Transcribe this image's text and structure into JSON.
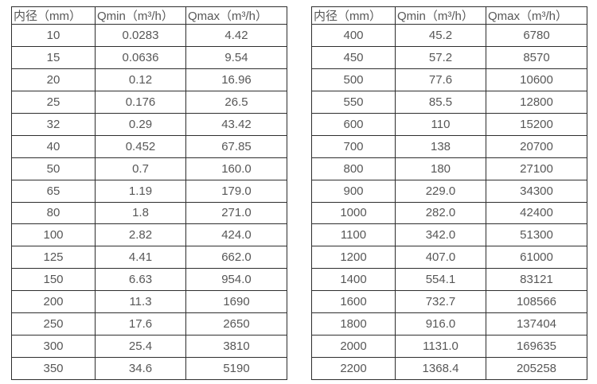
{
  "page": {
    "background_color": "#ffffff",
    "border_color": "#2e2e2e",
    "text_color": "#575757"
  },
  "tables": [
    {
      "name": "flow-table-small-diameters",
      "headers": [
        "内径（mm）",
        "Qmin（m³/h）",
        "Qmax（m³/h）"
      ],
      "rows": [
        [
          "10",
          "0.0283",
          "4.42"
        ],
        [
          "15",
          "0.0636",
          "9.54"
        ],
        [
          "20",
          "0.12",
          "16.96"
        ],
        [
          "25",
          "0.176",
          "26.5"
        ],
        [
          "32",
          "0.29",
          "43.42"
        ],
        [
          "40",
          "0.452",
          "67.85"
        ],
        [
          "50",
          "0.7",
          "160.0"
        ],
        [
          "65",
          "1.19",
          "179.0"
        ],
        [
          "80",
          "1.8",
          "271.0"
        ],
        [
          "100",
          "2.82",
          "424.0"
        ],
        [
          "125",
          "4.41",
          "662.0"
        ],
        [
          "150",
          "6.63",
          "954.0"
        ],
        [
          "200",
          "11.3",
          "1690"
        ],
        [
          "250",
          "17.6",
          "2650"
        ],
        [
          "300",
          "25.4",
          "3810"
        ],
        [
          "350",
          "34.6",
          "5190"
        ]
      ]
    },
    {
      "name": "flow-table-large-diameters",
      "headers": [
        "内径（mm）",
        "Qmin（m³/h）",
        "Qmax（m³/h）"
      ],
      "rows": [
        [
          "400",
          "45.2",
          "6780"
        ],
        [
          "450",
          "57.2",
          "8570"
        ],
        [
          "500",
          "77.6",
          "10600"
        ],
        [
          "550",
          "85.5",
          "12800"
        ],
        [
          "600",
          "110",
          "15200"
        ],
        [
          "700",
          "138",
          "20700"
        ],
        [
          "800",
          "180",
          "27100"
        ],
        [
          "900",
          "229.0",
          "34300"
        ],
        [
          "1000",
          "282.0",
          "42400"
        ],
        [
          "1100",
          "342.0",
          "51300"
        ],
        [
          "1200",
          "407.0",
          "61000"
        ],
        [
          "1400",
          "554.1",
          "83121"
        ],
        [
          "1600",
          "732.7",
          "108566"
        ],
        [
          "1800",
          "916.0",
          "137404"
        ],
        [
          "2000",
          "1131.0",
          "169635"
        ],
        [
          "2200",
          "1368.4",
          "205258"
        ]
      ]
    }
  ]
}
